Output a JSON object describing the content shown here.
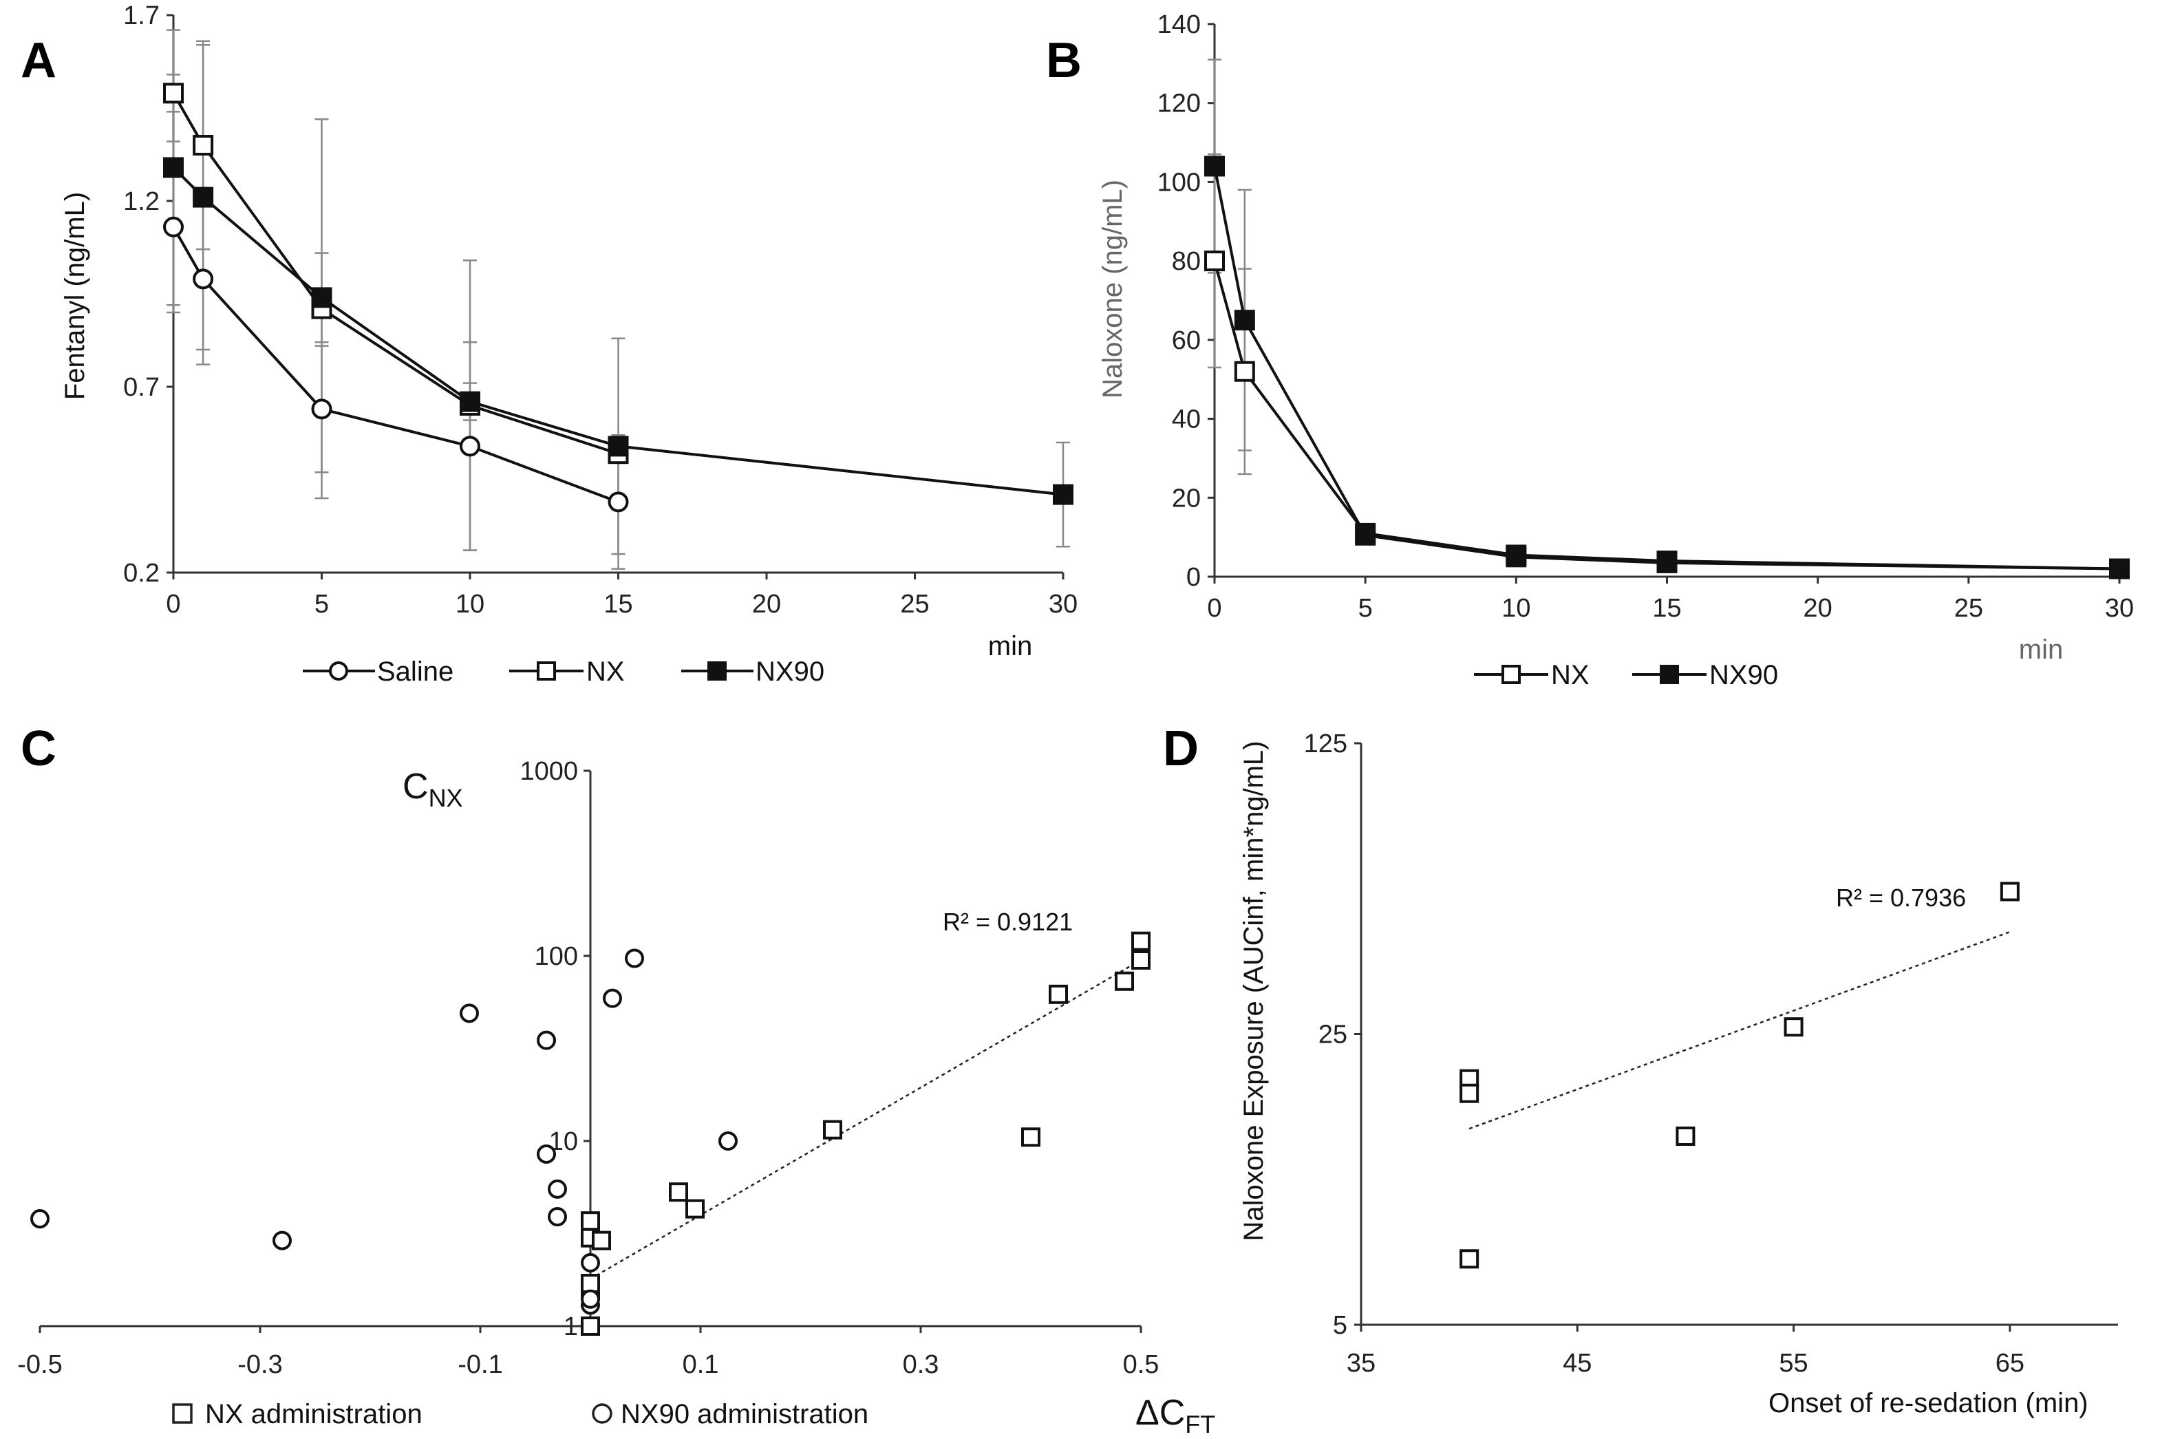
{
  "panels": {
    "A": {
      "letter": "A",
      "ylabel": "Fentanyl (ng/mL)",
      "xunit": "min",
      "yticks": [
        "0.2",
        "0.7",
        "1.2",
        "1.7"
      ],
      "xticks": [
        "0",
        "5",
        "10",
        "15",
        "20",
        "25",
        "30"
      ],
      "legend": [
        "Saline",
        "NX",
        "NX90"
      ]
    },
    "B": {
      "letter": "B",
      "ylabel": "Naloxone (ng/mL)",
      "xunit": "min",
      "yticks": [
        "0",
        "20",
        "40",
        "60",
        "80",
        "100",
        "120",
        "140"
      ],
      "xticks": [
        "0",
        "5",
        "10",
        "15",
        "20",
        "25",
        "30"
      ],
      "legend": [
        "NX",
        "NX90"
      ]
    },
    "C": {
      "letter": "C",
      "ylabel_main": "C",
      "ylabel_sub": "NX",
      "xlabel_main": "ΔC",
      "xlabel_sub": "FT",
      "yticks": [
        "1",
        "10",
        "100",
        "1000"
      ],
      "xticks": [
        "-0.5",
        "-0.3",
        "-0.1",
        "0.1",
        "0.3",
        "0.5"
      ],
      "legend": [
        "NX administration",
        "NX90 administration"
      ],
      "r2": "R² = 0.9121"
    },
    "D": {
      "letter": "D",
      "ylabel": "Naloxone Exposure (AUCinf, min*ng/mL)",
      "xlabel": "Onset of re-sedation (min)",
      "yticks": [
        "5",
        "25",
        "125"
      ],
      "xticks": [
        "35",
        "45",
        "55",
        "65"
      ],
      "r2": "R² = 0.7936"
    }
  },
  "chart_data": [
    {
      "panel": "A",
      "type": "line",
      "ylabel": "Fentanyl (ng/mL)",
      "xlabel": "min",
      "xlim": [
        0,
        30
      ],
      "ylim": [
        0.2,
        1.7
      ],
      "legend_position": "bottom",
      "series": [
        {
          "name": "Saline",
          "marker": "circle-open",
          "x": [
            0,
            1,
            5,
            10,
            15
          ],
          "y": [
            1.13,
            0.99,
            0.64,
            0.54,
            0.39
          ],
          "err": [
            0.23,
            0.23,
            0.17,
            0.28,
            0.14
          ]
        },
        {
          "name": "NX",
          "marker": "square-open",
          "x": [
            0,
            1,
            5,
            10,
            15
          ],
          "y": [
            1.49,
            1.35,
            0.91,
            0.65,
            0.52
          ],
          "err": [
            0.05,
            0.28,
            0.51,
            0.39,
            0.31
          ]
        },
        {
          "name": "NX90",
          "marker": "square-filled",
          "x": [
            0,
            1,
            5,
            10,
            15,
            30
          ],
          "y": [
            1.29,
            1.21,
            0.94,
            0.66,
            0.54,
            0.41
          ],
          "err": [
            0.37,
            0.41,
            0.12,
            0.05,
            0.03,
            0.14
          ]
        }
      ]
    },
    {
      "panel": "B",
      "type": "line",
      "ylabel": "Naloxone (ng/mL)",
      "xlabel": "min",
      "xlim": [
        0,
        30
      ],
      "ylim": [
        0,
        140
      ],
      "legend_position": "bottom",
      "series": [
        {
          "name": "NX",
          "marker": "square-open",
          "x": [
            0,
            1,
            5,
            10,
            15,
            30
          ],
          "y": [
            80,
            52,
            11,
            5.5,
            4,
            2
          ],
          "err": [
            27,
            26,
            0,
            0,
            0,
            0
          ]
        },
        {
          "name": "NX90",
          "marker": "square-filled",
          "x": [
            0,
            1,
            5,
            10,
            15,
            30
          ],
          "y": [
            104,
            65,
            10.5,
            5,
            3.5,
            2
          ],
          "err": [
            27,
            33,
            0,
            0,
            0,
            0
          ]
        }
      ]
    },
    {
      "panel": "C",
      "type": "scatter",
      "xlabel": "ΔC_FT",
      "ylabel": "C_NX",
      "xlim": [
        -0.5,
        0.5
      ],
      "ylim": [
        1,
        1000
      ],
      "yscale": "log",
      "legend_position": "bottom",
      "series": [
        {
          "name": "NX administration",
          "marker": "square-open",
          "x": [
            0,
            0,
            0,
            0,
            0,
            0.01,
            0.08,
            0.095,
            0.22,
            0.4,
            0.425,
            0.485,
            0.5,
            0.5
          ],
          "y": [
            1,
            1.6,
            1.7,
            3.0,
            3.7,
            2.9,
            5.3,
            4.3,
            11.5,
            10.5,
            62,
            73,
            95,
            120
          ]
        },
        {
          "name": "NX90 administration",
          "marker": "circle-open",
          "x": [
            -0.5,
            -0.28,
            -0.11,
            -0.04,
            -0.04,
            -0.03,
            -0.03,
            0,
            0,
            0,
            0.02,
            0.04,
            0.125
          ],
          "y": [
            3.8,
            2.9,
            49,
            35,
            8.5,
            5.5,
            3.9,
            2.2,
            1.3,
            1.4,
            59,
            97,
            10
          ]
        },
        {
          "name": "Trendline (NX)",
          "style": "dotted",
          "x": [
            0,
            0.5
          ],
          "y": [
            1.8,
            95
          ]
        }
      ],
      "annotations": [
        "R² = 0.9121"
      ]
    },
    {
      "panel": "D",
      "type": "scatter",
      "xlabel": "Onset of re-sedation (min)",
      "ylabel": "Naloxone Exposure (AUCinf, min*ng/mL)",
      "xlim": [
        35,
        70
      ],
      "ylim": [
        5,
        125
      ],
      "yscale": "log",
      "series": [
        {
          "name": "",
          "marker": "square-open",
          "x": [
            40,
            40,
            40,
            50,
            55,
            65
          ],
          "y": [
            19.5,
            18,
            7.2,
            14.2,
            26,
            55
          ]
        },
        {
          "name": "Trendline",
          "style": "dotted",
          "x": [
            40,
            65
          ],
          "y": [
            14.8,
            44
          ]
        }
      ],
      "annotations": [
        "R² = 0.7936"
      ]
    }
  ]
}
